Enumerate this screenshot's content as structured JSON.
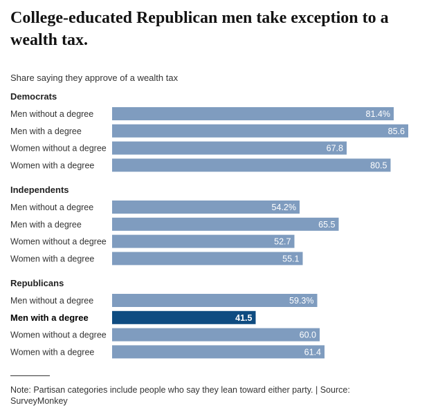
{
  "headline": "College-educated Republican men take exception to a wealth tax.",
  "subtitle": "Share saying they approve of a wealth tax",
  "note": "Note: Partisan categories include people who say they lean toward either party. | Source: SurveyMonkey",
  "colors": {
    "bar": "#7f9cbf",
    "highlight": "#0f4c81",
    "label_in_bar": "#ffffff",
    "text": "#333333"
  },
  "chart_data": {
    "type": "bar",
    "orientation": "horizontal",
    "xlim": [
      0,
      100
    ],
    "groups": [
      {
        "name": "Democrats",
        "bars": [
          {
            "label": "Men without a degree",
            "value": 81.4,
            "value_label": "81.4%"
          },
          {
            "label": "Men with a degree",
            "value": 85.6,
            "value_label": "85.6"
          },
          {
            "label": "Women without a degree",
            "value": 67.8,
            "value_label": "67.8"
          },
          {
            "label": "Women with a degree",
            "value": 80.5,
            "value_label": "80.5"
          }
        ]
      },
      {
        "name": "Independents",
        "bars": [
          {
            "label": "Men without a degree",
            "value": 54.2,
            "value_label": "54.2%"
          },
          {
            "label": "Men with a degree",
            "value": 65.5,
            "value_label": "65.5"
          },
          {
            "label": "Women without a degree",
            "value": 52.7,
            "value_label": "52.7"
          },
          {
            "label": "Women with a degree",
            "value": 55.1,
            "value_label": "55.1"
          }
        ]
      },
      {
        "name": "Republicans",
        "bars": [
          {
            "label": "Men without a degree",
            "value": 59.3,
            "value_label": "59.3%"
          },
          {
            "label": "Men with a degree",
            "value": 41.5,
            "value_label": "41.5",
            "highlight": true
          },
          {
            "label": "Women without a degree",
            "value": 60.0,
            "value_label": "60.0"
          },
          {
            "label": "Women with a degree",
            "value": 61.4,
            "value_label": "61.4"
          }
        ]
      }
    ]
  }
}
